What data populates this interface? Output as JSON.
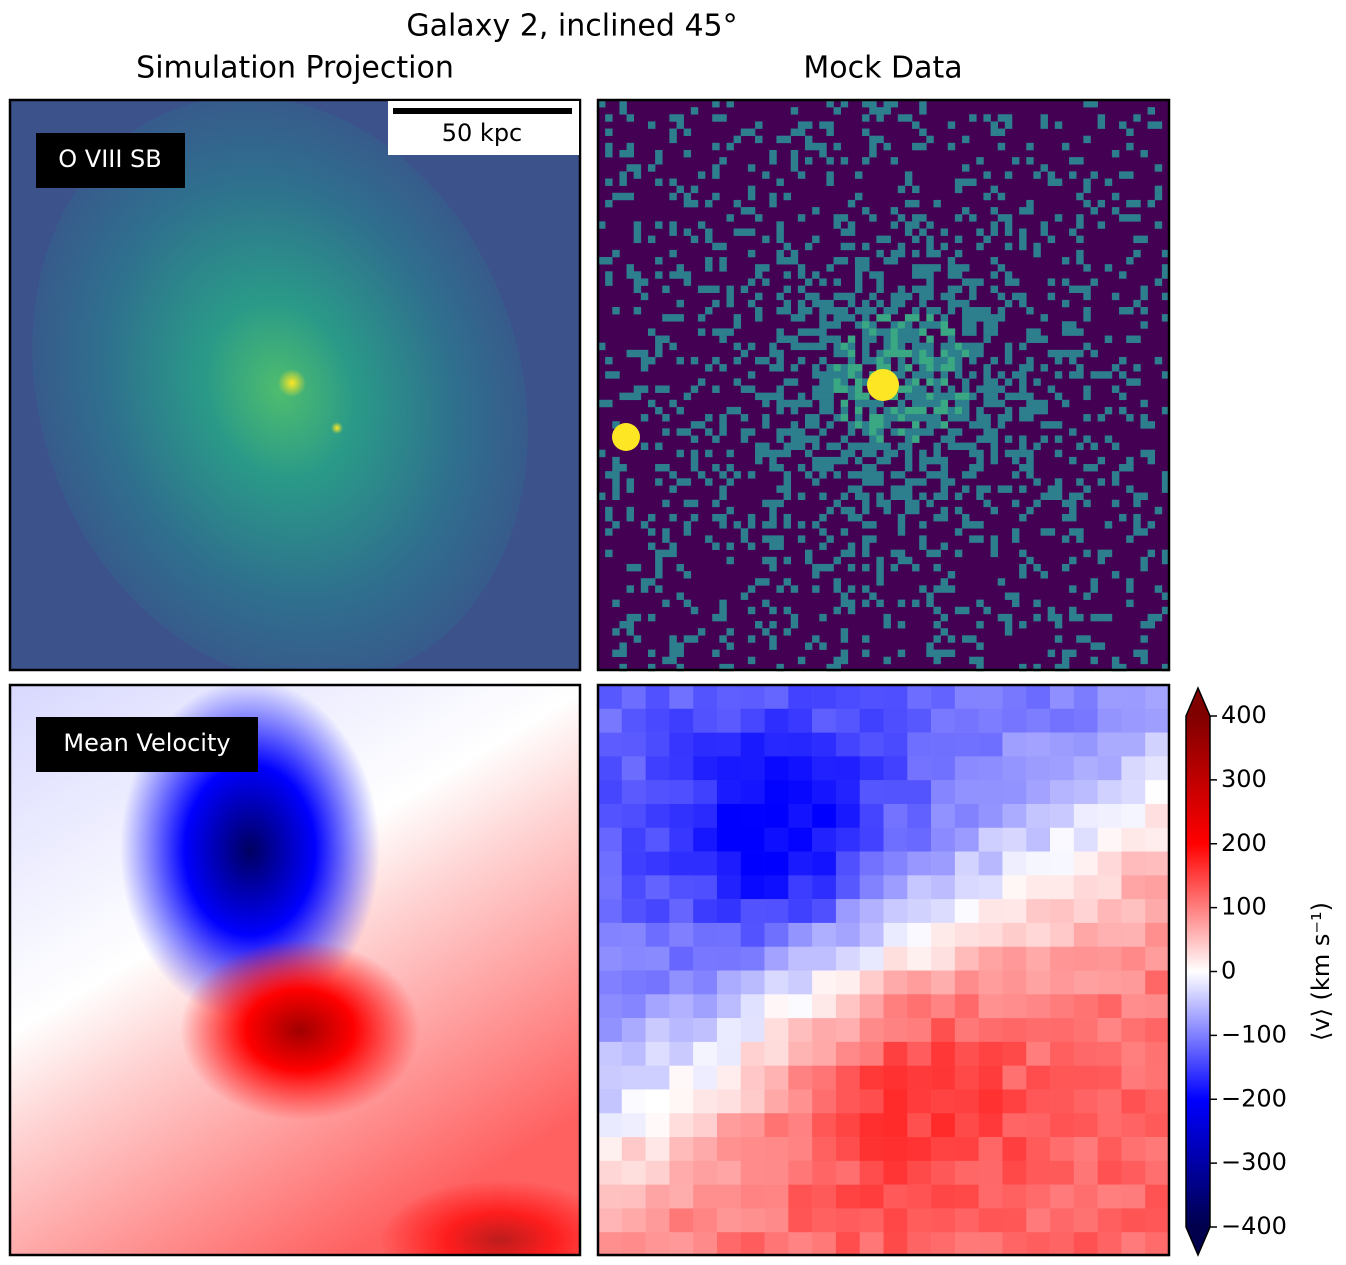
{
  "title": "Galaxy 2, inclined 45°",
  "column_titles": [
    "Simulation Projection",
    "Mock Data"
  ],
  "panel_labels": [
    "O VIII SB",
    "Mean Velocity"
  ],
  "scale_bar": "50 kpc",
  "chart_data": {
    "type": "colorbar",
    "label": "⟨v⟩ (km s⁻¹)",
    "ylim": [
      -400,
      400
    ],
    "yticks": [
      400,
      300,
      200,
      100,
      0,
      {
        "value": -100,
        "label": "−100"
      },
      {
        "value": -200,
        "label": "−200"
      },
      {
        "value": -300,
        "label": "−300"
      },
      {
        "value": -400,
        "label": "−400"
      }
    ],
    "colors": [
      "#00004c",
      "#0000ff",
      "#ffffff",
      "#ff0000",
      "#800000"
    ]
  }
}
